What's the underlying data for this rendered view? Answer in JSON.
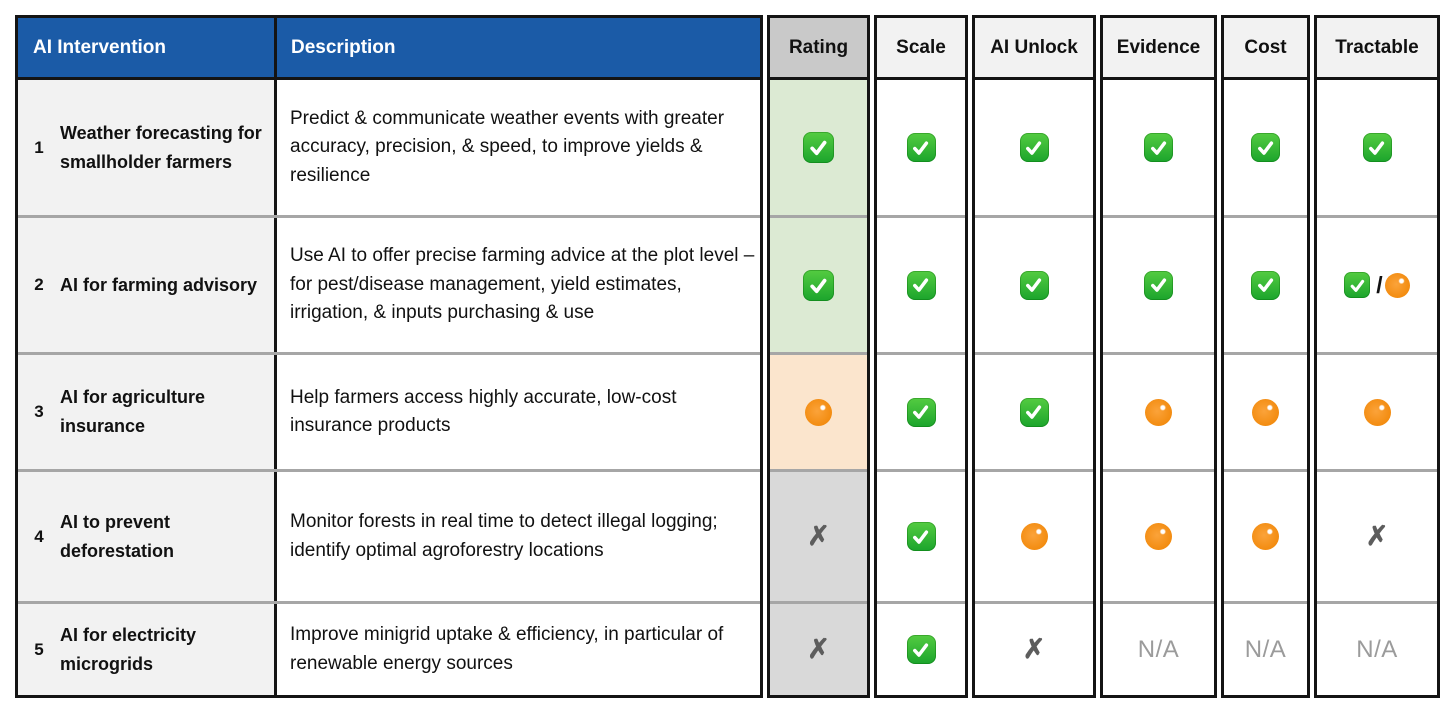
{
  "header": {
    "left": [
      "AI Intervention",
      "Description"
    ]
  },
  "columns": [
    {
      "key": "rating",
      "label": "Rating"
    },
    {
      "key": "scale",
      "label": "Scale"
    },
    {
      "key": "ai_unlock",
      "label": "AI Unlock"
    },
    {
      "key": "evidence",
      "label": "Evidence"
    },
    {
      "key": "cost",
      "label": "Cost"
    },
    {
      "key": "tractable",
      "label": "Tractable"
    }
  ],
  "rows": [
    {
      "num": "1",
      "title": "Weather forecasting for smallholder farmers",
      "description": "Predict & communicate weather events with greater accuracy, precision, & speed, to improve yields & resilience",
      "rating_bg": "#dcead3",
      "cells": {
        "rating": "check",
        "scale": "check",
        "ai_unlock": "check",
        "evidence": "check",
        "cost": "check",
        "tractable": "check"
      }
    },
    {
      "num": "2",
      "title": "AI for farming advisory",
      "description": "Use AI to offer precise farming advice at the plot level – for pest/disease management, yield estimates, irrigation, & inputs purchasing & use",
      "rating_bg": "#dcead3",
      "cells": {
        "rating": "check",
        "scale": "check",
        "ai_unlock": "check",
        "evidence": "check",
        "cost": "check",
        "tractable": "check/circle"
      }
    },
    {
      "num": "3",
      "title": "AI for agriculture insurance",
      "description": "Help farmers access highly accurate, low-cost insurance products",
      "rating_bg": "#fbe5cd",
      "cells": {
        "rating": "circle",
        "scale": "check",
        "ai_unlock": "check",
        "evidence": "circle",
        "cost": "circle",
        "tractable": "circle"
      }
    },
    {
      "num": "4",
      "title": "AI to prevent deforestation",
      "description": "Monitor forests in real time to detect illegal logging; identify optimal agroforestry locations",
      "rating_bg": "#d9d9d9",
      "cells": {
        "rating": "cross",
        "scale": "check",
        "ai_unlock": "circle",
        "evidence": "circle",
        "cost": "circle",
        "tractable": "cross"
      }
    },
    {
      "num": "5",
      "title": "AI for electricity microgrids",
      "description": "Improve minigrid uptake & efficiency, in particular of renewable energy sources",
      "rating_bg": "#d9d9d9",
      "cells": {
        "rating": "cross",
        "scale": "check",
        "ai_unlock": "cross",
        "evidence": "na",
        "cost": "na",
        "tractable": "na"
      }
    }
  ],
  "symbols": {
    "na_label": "N/A",
    "cross_glyph": "✗",
    "slash": "/"
  },
  "colors": {
    "header_blue": "#1b5ba7",
    "rating_header_gray": "#c9c9c9",
    "column_header_gray": "#f2f2f2",
    "rating_green_bg": "#dcead3",
    "rating_orange_bg": "#fbe5cd",
    "rating_gray_bg": "#d9d9d9",
    "check_green": "#1ba42c",
    "circle_orange": "#f28a0d"
  },
  "chart_data": {
    "type": "table",
    "title": "AI Intervention ratings",
    "columns": [
      "#",
      "AI Intervention",
      "Description",
      "Rating",
      "Scale",
      "AI Unlock",
      "Evidence",
      "Cost",
      "Tractable"
    ],
    "rows": [
      [
        "1",
        "Weather forecasting for smallholder farmers",
        "Predict & communicate weather events with greater accuracy, precision, & speed, to improve yields & resilience",
        "✅",
        "✅",
        "✅",
        "✅",
        "✅",
        "✅"
      ],
      [
        "2",
        "AI for farming advisory",
        "Use AI to offer precise farming advice at the plot level – for pest/disease management, yield estimates, irrigation, & inputs purchasing & use",
        "✅",
        "✅",
        "✅",
        "✅",
        "✅",
        "✅/🟠"
      ],
      [
        "3",
        "AI for agriculture insurance",
        "Help farmers access highly accurate, low-cost insurance products",
        "🟠",
        "✅",
        "✅",
        "🟠",
        "🟠",
        "🟠"
      ],
      [
        "4",
        "AI to prevent deforestation",
        "Monitor forests in real time to detect illegal logging; identify optimal agroforestry locations",
        "✗",
        "✅",
        "🟠",
        "🟠",
        "🟠",
        "✗"
      ],
      [
        "5",
        "AI for electricity microgrids",
        "Improve minigrid uptake & efficiency, in particular of renewable energy sources",
        "✗",
        "✅",
        "✗",
        "N/A",
        "N/A",
        "N/A"
      ]
    ]
  }
}
